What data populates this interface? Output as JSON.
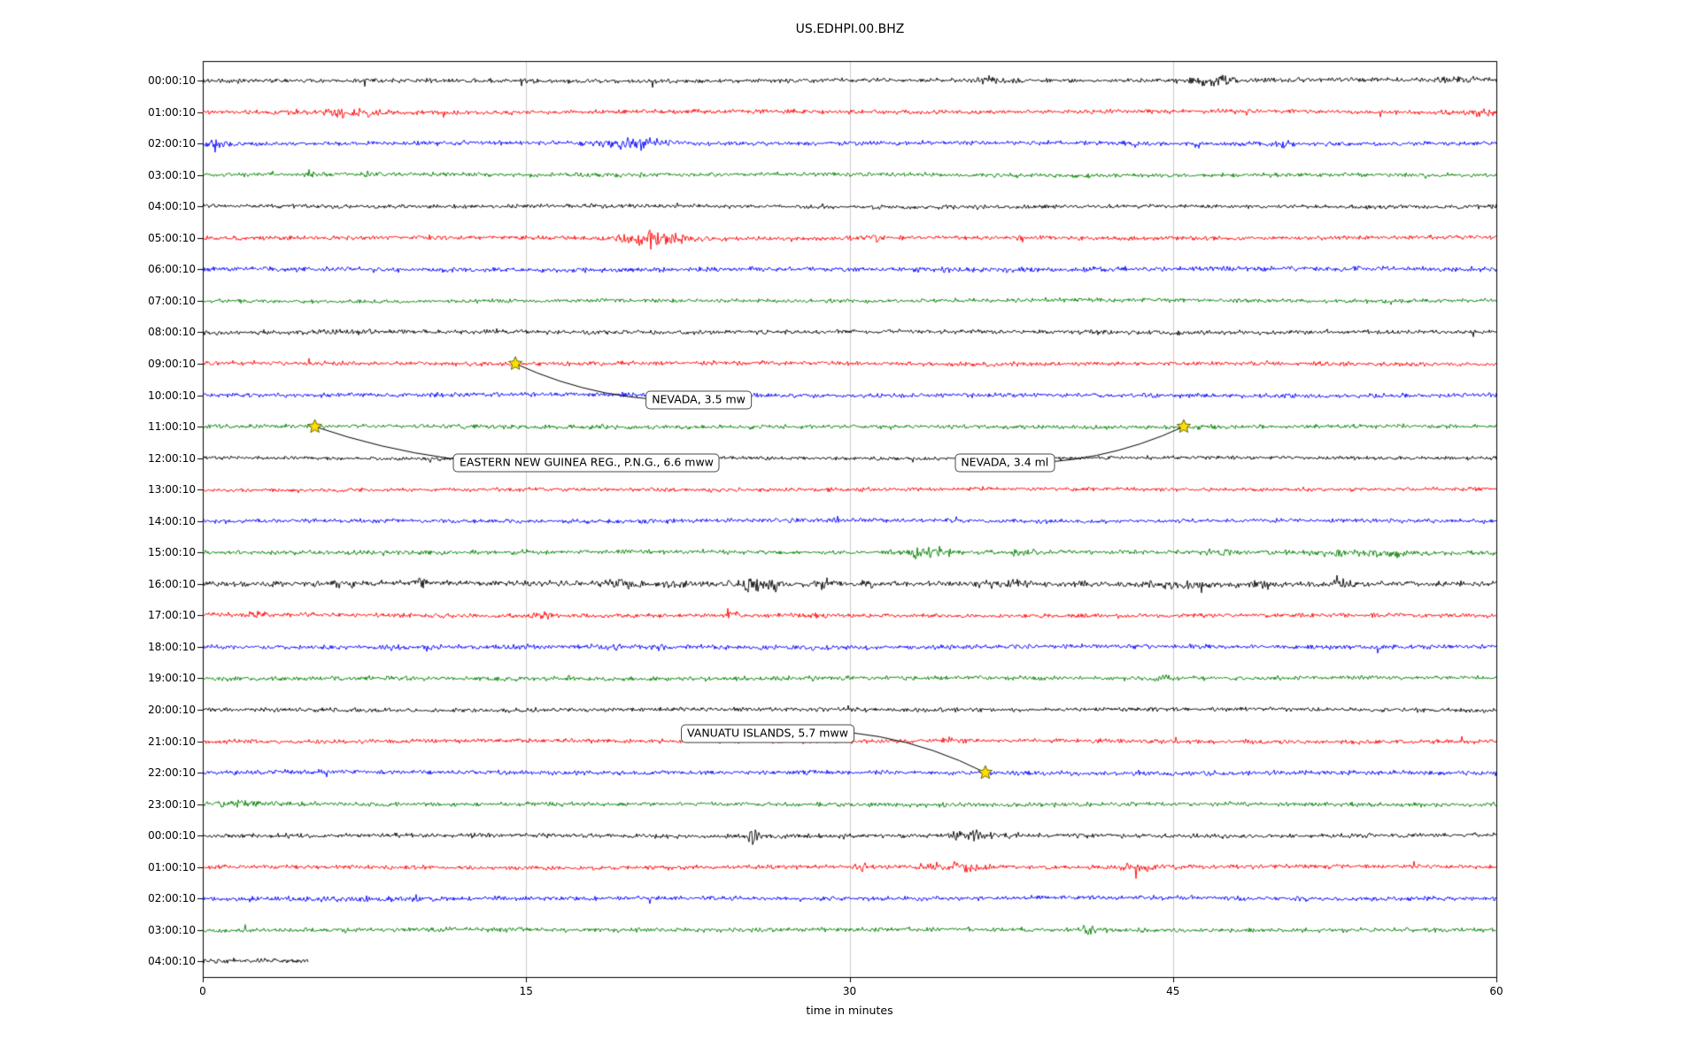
{
  "chart_data": {
    "type": "line",
    "chart_kind": "seismogram-helicorder",
    "title": "US.EDHPI.00.BHZ",
    "xlabel": "time in minutes",
    "x_ticks": [
      0,
      15,
      30,
      45,
      60
    ],
    "x_range": [
      0,
      60
    ],
    "row_color_cycle": [
      "#000000",
      "#ff0000",
      "#0000ff",
      "#008000"
    ],
    "grid_color": "#cccccc",
    "axis_color": "#000000",
    "star_fill": "#ffdf00",
    "star_edge": "#555500",
    "rows": [
      {
        "label": "00:00:10",
        "color": "#000000",
        "amp": 1.0,
        "extent": [
          0,
          60
        ],
        "bursts": [
          [
            35.5,
            37.5,
            2.6
          ],
          [
            45.8,
            48.5,
            3.2
          ],
          [
            57.2,
            59.2,
            2.0
          ]
        ]
      },
      {
        "label": "01:00:10",
        "color": "#ff0000",
        "amp": 1.0,
        "extent": [
          0,
          60
        ],
        "bursts": [
          [
            4.5,
            8.5,
            2.4
          ],
          [
            58.3,
            60,
            2.8
          ]
        ]
      },
      {
        "label": "02:00:10",
        "color": "#0000ff",
        "amp": 1.0,
        "extent": [
          0,
          60
        ],
        "bursts": [
          [
            0,
            1.5,
            2.2
          ],
          [
            18.3,
            21.8,
            3.4
          ],
          [
            42.5,
            44,
            1.8
          ],
          [
            49.5,
            51,
            1.6
          ]
        ]
      },
      {
        "label": "03:00:10",
        "color": "#008000",
        "amp": 0.95,
        "extent": [
          0,
          60
        ],
        "bursts": [
          [
            4.7,
            5.3,
            3.2
          ],
          [
            7.4,
            8.2,
            2.2
          ]
        ]
      },
      {
        "label": "04:00:10",
        "color": "#000000",
        "amp": 0.95,
        "extent": [
          0,
          60
        ],
        "bursts": [
          [
            58.5,
            60,
            1.8
          ]
        ]
      },
      {
        "label": "05:00:10",
        "color": "#ff0000",
        "amp": 1.0,
        "extent": [
          0,
          60
        ],
        "bursts": [
          [
            19.3,
            22.6,
            4.8
          ],
          [
            30.8,
            31.4,
            2.0
          ],
          [
            37.6,
            38.2,
            1.9
          ]
        ]
      },
      {
        "label": "06:00:10",
        "color": "#0000ff",
        "amp": 1.15,
        "extent": [
          0,
          60
        ],
        "bursts": []
      },
      {
        "label": "07:00:10",
        "color": "#008000",
        "amp": 0.9,
        "extent": [
          0,
          60
        ],
        "bursts": []
      },
      {
        "label": "08:00:10",
        "color": "#000000",
        "amp": 1.0,
        "extent": [
          0,
          60
        ],
        "bursts": [
          [
            1,
            11,
            1.3
          ]
        ]
      },
      {
        "label": "09:00:10",
        "color": "#ff0000",
        "amp": 1.0,
        "extent": [
          0,
          60
        ],
        "bursts": []
      },
      {
        "label": "10:00:10",
        "color": "#0000ff",
        "amp": 1.05,
        "extent": [
          0,
          60
        ],
        "bursts": []
      },
      {
        "label": "11:00:10",
        "color": "#008000",
        "amp": 0.95,
        "extent": [
          0,
          60
        ],
        "bursts": [
          [
            18.2,
            18.9,
            2.0
          ]
        ]
      },
      {
        "label": "12:00:10",
        "color": "#000000",
        "amp": 0.85,
        "extent": [
          0,
          60
        ],
        "bursts": []
      },
      {
        "label": "13:00:10",
        "color": "#ff0000",
        "amp": 0.9,
        "extent": [
          0,
          60
        ],
        "bursts": []
      },
      {
        "label": "14:00:10",
        "color": "#0000ff",
        "amp": 1.0,
        "extent": [
          0,
          60
        ],
        "bursts": []
      },
      {
        "label": "15:00:10",
        "color": "#008000",
        "amp": 1.0,
        "extent": [
          0,
          60
        ],
        "bursts": [
          [
            32.4,
            35.2,
            3.4
          ],
          [
            37.4,
            38.6,
            2.2
          ],
          [
            46.4,
            47.6,
            2.2
          ],
          [
            50.5,
            57,
            2.0
          ]
        ]
      },
      {
        "label": "16:00:10",
        "color": "#000000",
        "amp": 1.25,
        "extent": [
          0,
          60
        ],
        "bursts": [
          [
            6,
            7,
            1.9
          ],
          [
            9.7,
            10.4,
            2.6
          ],
          [
            18.4,
            20.6,
            2.2
          ],
          [
            21.7,
            22.4,
            2.0
          ],
          [
            24.4,
            27.2,
            3.0
          ],
          [
            28.4,
            29.6,
            2.4
          ],
          [
            30.7,
            31.4,
            2.0
          ],
          [
            35.8,
            38.2,
            2.2
          ],
          [
            40.4,
            41.6,
            2.0
          ],
          [
            43.8,
            46.2,
            2.2
          ],
          [
            48.4,
            49.6,
            1.8
          ],
          [
            52.4,
            53.6,
            2.0
          ]
        ]
      },
      {
        "label": "17:00:10",
        "color": "#ff0000",
        "amp": 1.0,
        "extent": [
          0,
          60
        ],
        "bursts": [
          [
            2,
            3,
            1.8
          ],
          [
            15.4,
            16.6,
            1.8
          ],
          [
            19.7,
            20.3,
            1.7
          ],
          [
            24.2,
            24.8,
            3.4
          ],
          [
            28.4,
            29.6,
            1.7
          ]
        ]
      },
      {
        "label": "18:00:10",
        "color": "#0000ff",
        "amp": 1.05,
        "extent": [
          0,
          60
        ],
        "bursts": [
          [
            8.1,
            8.9,
            2.0
          ],
          [
            10.2,
            10.9,
            1.8
          ],
          [
            14.7,
            15.3,
            1.7
          ],
          [
            18.7,
            19.4,
            1.7
          ],
          [
            20.9,
            21.6,
            1.7
          ]
        ]
      },
      {
        "label": "19:00:10",
        "color": "#008000",
        "amp": 1.0,
        "extent": [
          0,
          60
        ],
        "bursts": [
          [
            13,
            14,
            1.7
          ],
          [
            16.7,
            17.4,
            1.7
          ],
          [
            27.7,
            28.4,
            1.7
          ],
          [
            32.2,
            32.9,
            1.7
          ],
          [
            44.2,
            44.9,
            2.0
          ],
          [
            53.2,
            53.9,
            1.9
          ]
        ]
      },
      {
        "label": "20:00:10",
        "color": "#000000",
        "amp": 1.0,
        "extent": [
          0,
          60
        ],
        "bursts": []
      },
      {
        "label": "21:00:10",
        "color": "#ff0000",
        "amp": 1.0,
        "extent": [
          0,
          60
        ],
        "bursts": [
          [
            29.7,
            30.4,
            2.0
          ],
          [
            34.2,
            34.9,
            2.2
          ]
        ]
      },
      {
        "label": "22:00:10",
        "color": "#0000ff",
        "amp": 1.1,
        "extent": [
          0,
          60
        ],
        "bursts": []
      },
      {
        "label": "23:00:10",
        "color": "#008000",
        "amp": 1.0,
        "extent": [
          0,
          60
        ],
        "bursts": [
          [
            0,
            3,
            1.6
          ]
        ]
      },
      {
        "label": "00:00:10",
        "color": "#000000",
        "amp": 1.0,
        "extent": [
          0,
          60
        ],
        "bursts": [
          [
            25.2,
            25.8,
            3.8
          ],
          [
            34.4,
            36.6,
            2.6
          ],
          [
            37.2,
            37.9,
            2.4
          ]
        ]
      },
      {
        "label": "01:00:10",
        "color": "#ff0000",
        "amp": 1.0,
        "extent": [
          0,
          60
        ],
        "bursts": [
          [
            30.2,
            30.9,
            2.2
          ],
          [
            33.4,
            36.2,
            3.0
          ],
          [
            42.4,
            44.1,
            2.4
          ]
        ]
      },
      {
        "label": "02:00:10",
        "color": "#0000ff",
        "amp": 1.05,
        "extent": [
          0,
          60
        ],
        "bursts": [
          [
            0,
            12,
            1.35
          ]
        ]
      },
      {
        "label": "03:00:10",
        "color": "#008000",
        "amp": 1.0,
        "extent": [
          0,
          60
        ],
        "bursts": [
          [
            40.7,
            41.4,
            3.4
          ]
        ]
      },
      {
        "label": "04:00:10",
        "color": "#000000",
        "amp": 1.2,
        "extent": [
          0,
          4.9
        ],
        "bursts": []
      }
    ],
    "events": [
      {
        "label": "NEVADA, 3.5 mw",
        "star": {
          "row": 9,
          "minute": 14.5
        },
        "text_pos": {
          "row": 10.15,
          "minute": 23.0
        }
      },
      {
        "label": "EASTERN NEW GUINEA REG., P.N.G., 6.6 mww",
        "star": {
          "row": 11,
          "minute": 5.2
        },
        "text_pos": {
          "row": 12.15,
          "minute": 17.8
        }
      },
      {
        "label": "NEVADA, 3.4 ml",
        "star": {
          "row": 11,
          "minute": 45.5
        },
        "text_pos": {
          "row": 12.15,
          "minute": 37.2
        }
      },
      {
        "label": "VANUATU ISLANDS, 5.7 mww",
        "star": {
          "row": 22,
          "minute": 36.3
        },
        "text_pos": {
          "row": 20.75,
          "minute": 26.2
        }
      }
    ]
  }
}
